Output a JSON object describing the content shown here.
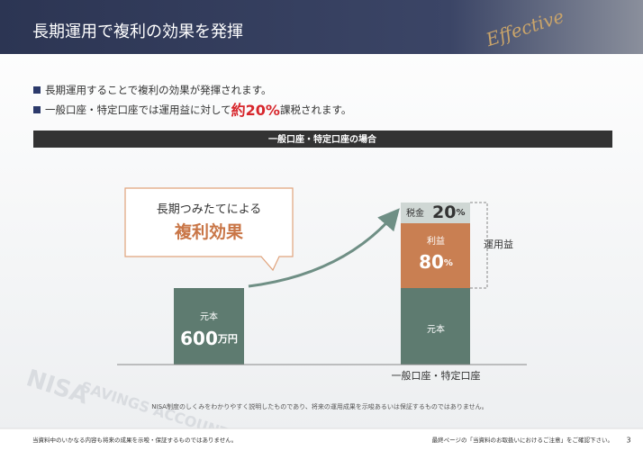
{
  "header": {
    "title": "長期運用で複利の効果を発揮",
    "decoration": "Effective"
  },
  "bullets": [
    {
      "text": "長期運用することで複利の効果が発揮されます。"
    },
    {
      "text": "一般口座・特定口座では運用益に対して",
      "highlight": "約20%",
      "suffix": "課税されます。"
    }
  ],
  "section_title": "一般口座・特定口座の場合",
  "callout": {
    "line1": "長期つみたてによる",
    "line2": "複利効果"
  },
  "left_bar": {
    "label": "元本",
    "amount": "600",
    "unit": "万円"
  },
  "right_stack": {
    "tax": {
      "label": "税金",
      "amount": "20",
      "unit": "%"
    },
    "profit": {
      "label": "利益",
      "amount": "80",
      "unit": "%"
    },
    "principal": {
      "label": "元本"
    },
    "bracket_label": "運用益",
    "x_label": "一般口座・特定口座"
  },
  "watermark": {
    "line1": "NISA",
    "line2": "SAVINGS ACCOUNT"
  },
  "note": "NISA制度のしくみをわかりやすく説明したものであり、将来の運用成果を示唆あるいは保証するものではありません。",
  "footer": {
    "left": "当資料中のいかなる内容も将来の成果を示唆・保証するものではありません。",
    "right": "最終ページの「当資料のお取扱いにおけるご注意」をご確認下さい。",
    "page": "3"
  }
}
